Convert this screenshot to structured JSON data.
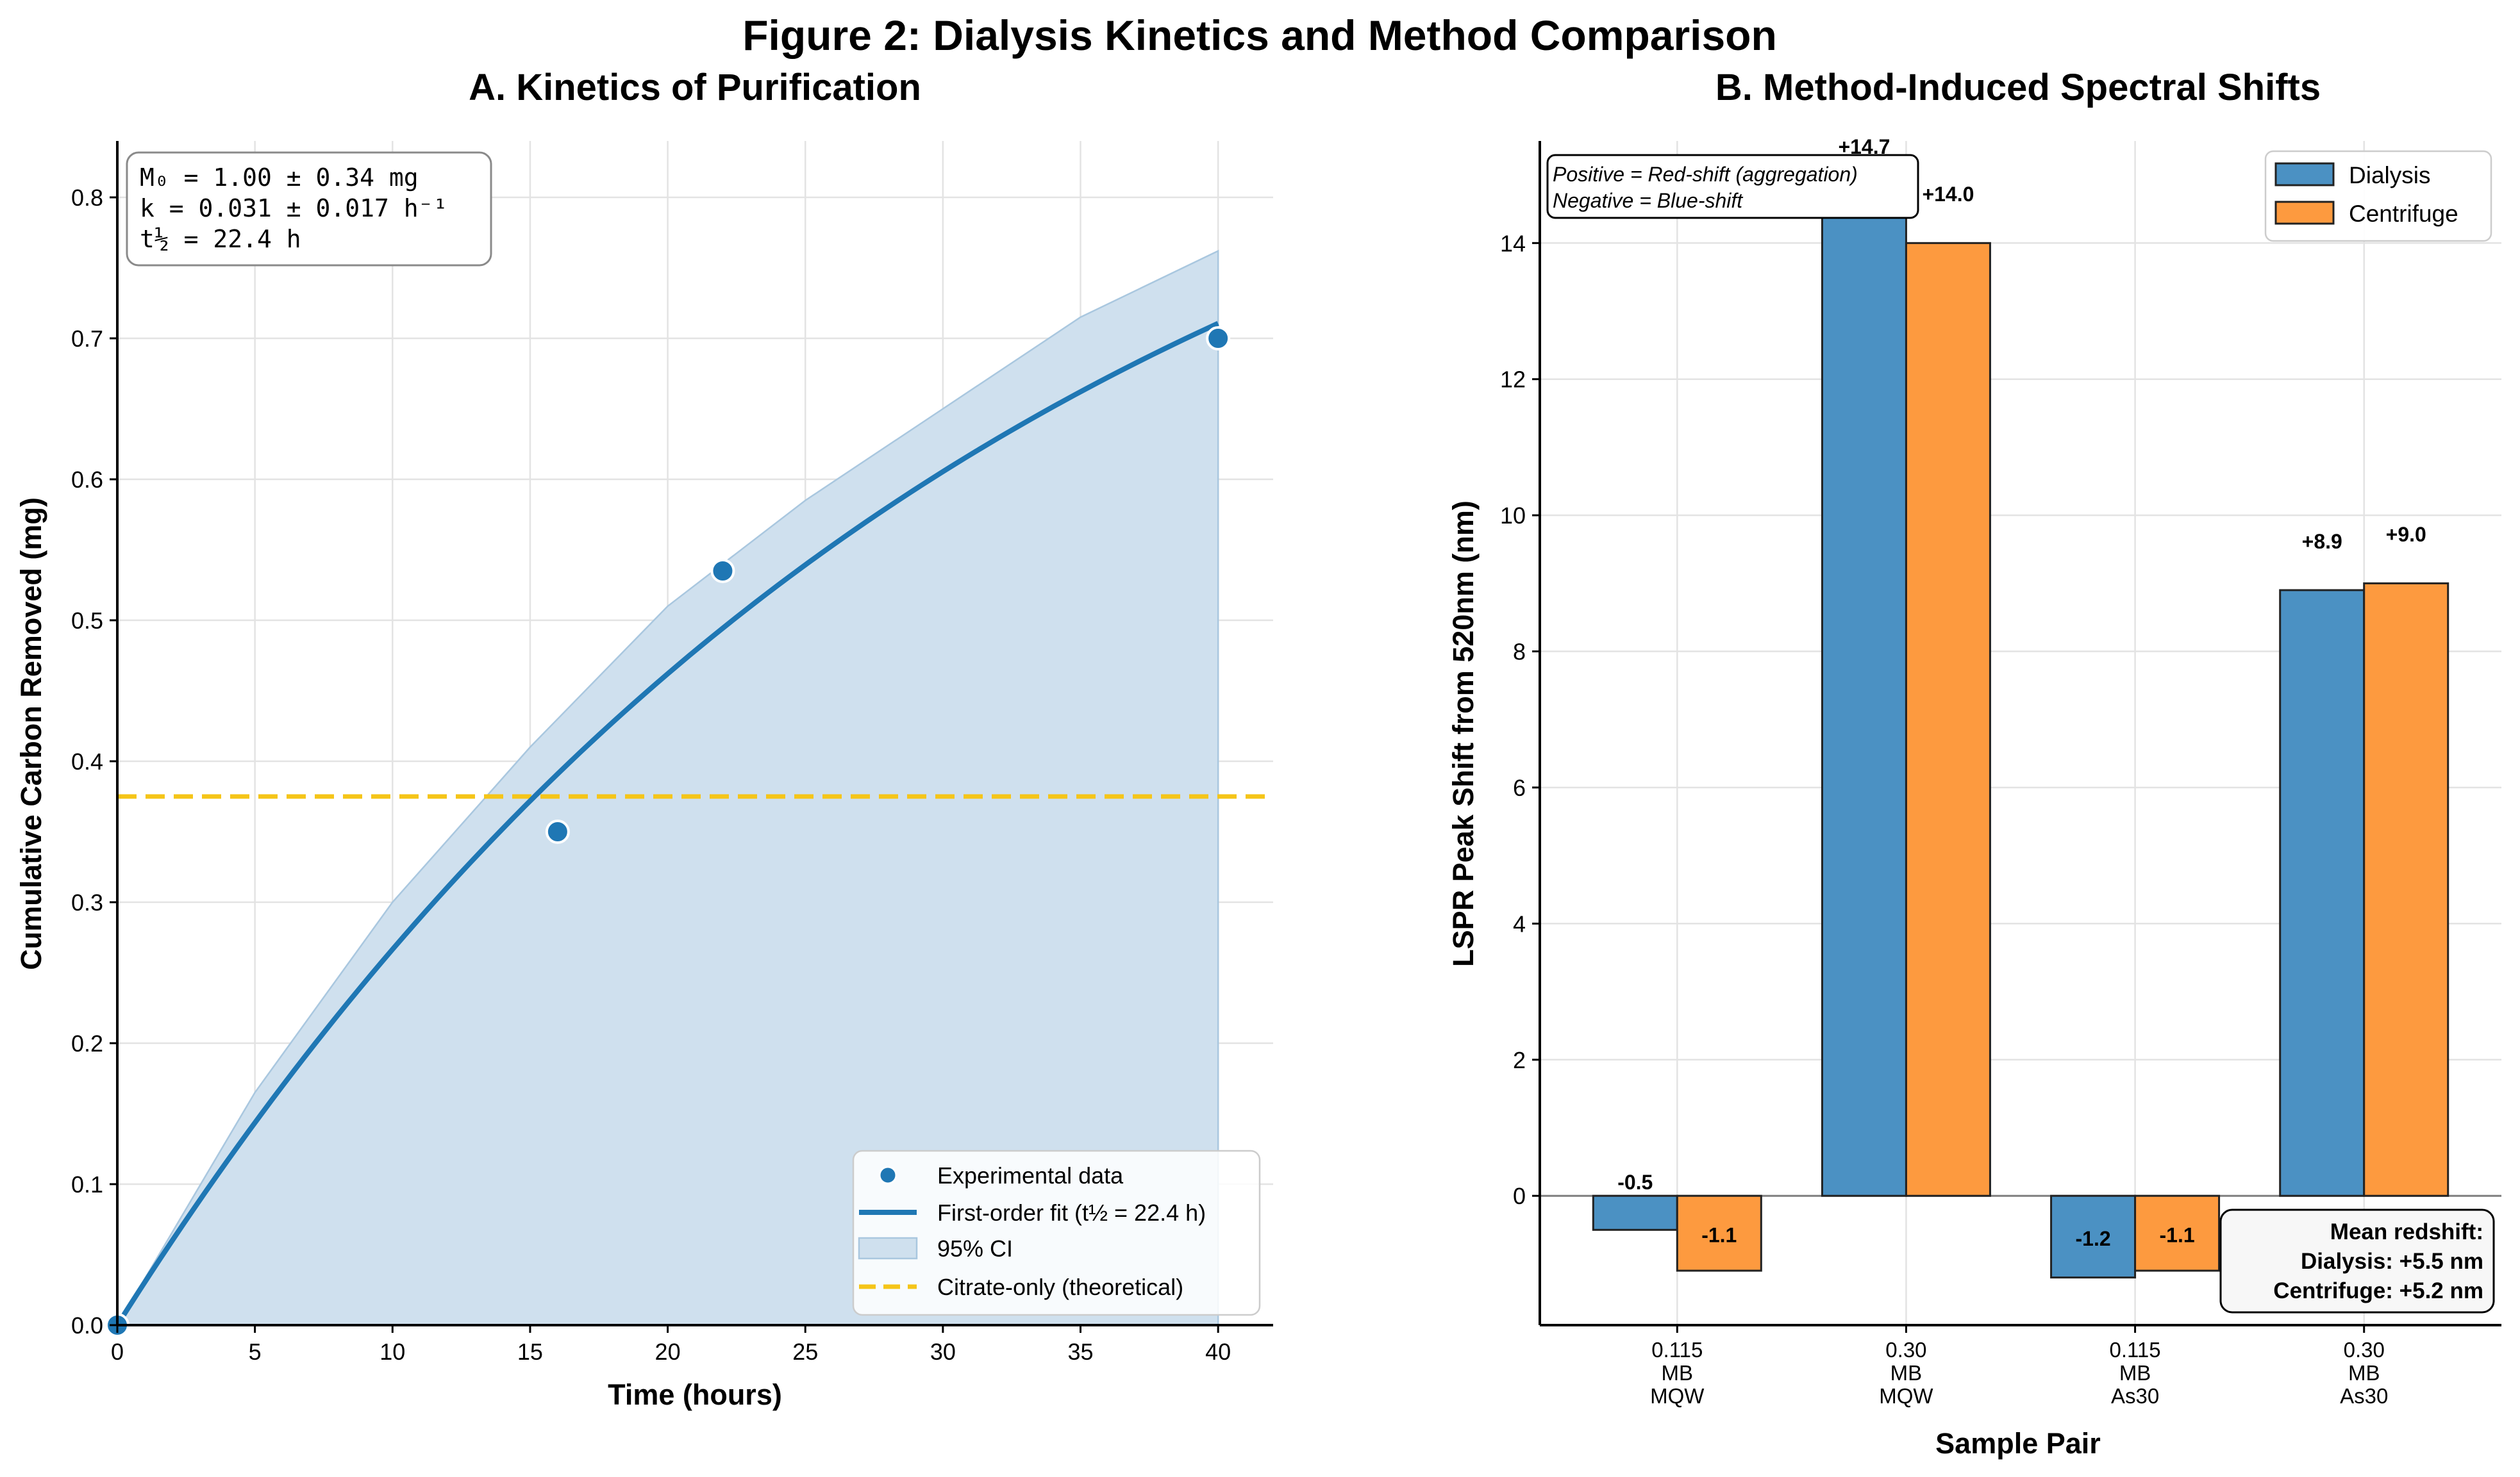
{
  "figure": {
    "title": "Figure 2: Dialysis Kinetics and Method Comparison"
  },
  "colors": {
    "blue": "#1f77b4",
    "blue_bar": "#4b91c3",
    "orange_bar": "#fd9a3f",
    "ci_fill": "#cfe0ee",
    "citrate": "#f5c518",
    "grid": "#e3e3e3",
    "axis": "#000000"
  },
  "chart_data": [
    {
      "panel": "A",
      "type": "line",
      "title": "A. Kinetics of Purification",
      "xlabel": "Time (hours)",
      "ylabel": "Cumulative Carbon Removed (mg)",
      "xlim": [
        0,
        42
      ],
      "ylim": [
        0,
        0.84
      ],
      "xticks": [
        0,
        5,
        10,
        15,
        20,
        25,
        30,
        35,
        40
      ],
      "xtick_labels": [
        "0",
        "5",
        "10",
        "15",
        "20",
        "25",
        "30",
        "35",
        "40"
      ],
      "yticks": [
        0,
        0.1,
        0.2,
        0.3,
        0.4,
        0.5,
        0.6,
        0.7,
        0.8
      ],
      "ytick_labels": [
        "0.0",
        "0.1",
        "0.2",
        "0.3",
        "0.4",
        "0.5",
        "0.6",
        "0.7",
        "0.8"
      ],
      "grid": true,
      "fit": {
        "M0": 1.0,
        "k": 0.031,
        "t_range": [
          0,
          40
        ]
      },
      "ci_upper": {
        "x": [
          0,
          5,
          10,
          15,
          20,
          25,
          30,
          35,
          40
        ],
        "y": [
          0,
          0.165,
          0.3,
          0.41,
          0.51,
          0.585,
          0.65,
          0.715,
          0.762
        ]
      },
      "experimental": {
        "x": [
          0,
          16,
          22,
          40
        ],
        "y": [
          0.0,
          0.35,
          0.535,
          0.7
        ]
      },
      "citrate_only": 0.375,
      "annotation": [
        "M₀ = 1.00 ± 0.34 mg",
        "k = 0.031 ± 0.017 h⁻¹",
        "t½ = 22.4 h"
      ],
      "legend": {
        "placement": "lower-right",
        "entries": [
          "Experimental data",
          "First-order fit (t½ = 22.4 h)",
          "95% CI",
          "Citrate-only (theoretical)"
        ]
      }
    },
    {
      "panel": "B",
      "type": "bar",
      "title": "B. Method-Induced Spectral Shifts",
      "xlabel": "Sample Pair",
      "ylabel": "LSPR Peak Shift from 520nm (nm)",
      "ylim": [
        -1.9,
        15.5
      ],
      "yticks": [
        0,
        2,
        4,
        6,
        8,
        10,
        12,
        14
      ],
      "ytick_labels": [
        "0",
        "2",
        "4",
        "6",
        "8",
        "10",
        "12",
        "14"
      ],
      "grid": true,
      "categories": [
        [
          "0.115",
          "MB",
          "MQW"
        ],
        [
          "0.30",
          "MB",
          "MQW"
        ],
        [
          "0.115",
          "MB",
          "As30"
        ],
        [
          "0.30",
          "MB",
          "As30"
        ]
      ],
      "series": [
        {
          "name": "Dialysis",
          "values": [
            -0.5,
            14.7,
            -1.2,
            8.9
          ],
          "labels": [
            "-0.5",
            "+14.7",
            "-1.2",
            "+8.9"
          ]
        },
        {
          "name": "Centrifuge",
          "values": [
            -1.1,
            14.0,
            -1.1,
            9.0
          ],
          "labels": [
            "-1.1",
            "+14.0",
            "-1.1",
            "+9.0"
          ]
        }
      ],
      "note": [
        "Positive = Red-shift (aggregation)",
        "Negative = Blue-shift"
      ],
      "summary": [
        "Mean redshift:",
        "Dialysis: +5.5 nm",
        "Centrifuge: +5.2 nm"
      ],
      "legend": {
        "placement": "top-right"
      }
    }
  ]
}
